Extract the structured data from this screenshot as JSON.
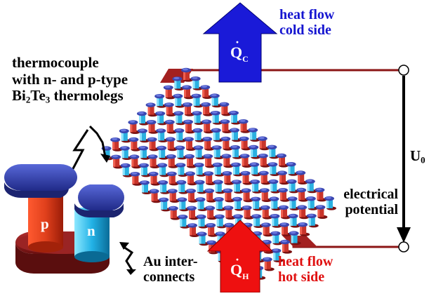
{
  "labels": {
    "heat_flow_cold": [
      "heat flow",
      "cold side"
    ],
    "heat_flow_hot": [
      "heat flow",
      "hot side"
    ],
    "thermocouple": {
      "line1": "thermocouple",
      "line2": "with n- and p-type",
      "bi": "Bi",
      "bi_sub": "2",
      "te": "Te",
      "te_sub": "3",
      "tail": " thermolegs"
    },
    "voltage": {
      "symbol": "U",
      "sub": "0"
    },
    "potential": [
      "electrical",
      "potential"
    ],
    "au": [
      "Au inter-",
      "connects"
    ],
    "q_cold": {
      "symbol": "Q",
      "sub": "C"
    },
    "q_hot": {
      "symbol": "Q",
      "sub": "H"
    },
    "leg_p": "p",
    "leg_n": "n"
  },
  "colors": {
    "cold": "#1515d0",
    "hot": "#e01010",
    "wire": "#8b1515",
    "leg_p": "#d02a10",
    "leg_n": "#1aa8d8",
    "cap": "#3848b8",
    "base": "#8a1c1c",
    "text": "#000000"
  }
}
